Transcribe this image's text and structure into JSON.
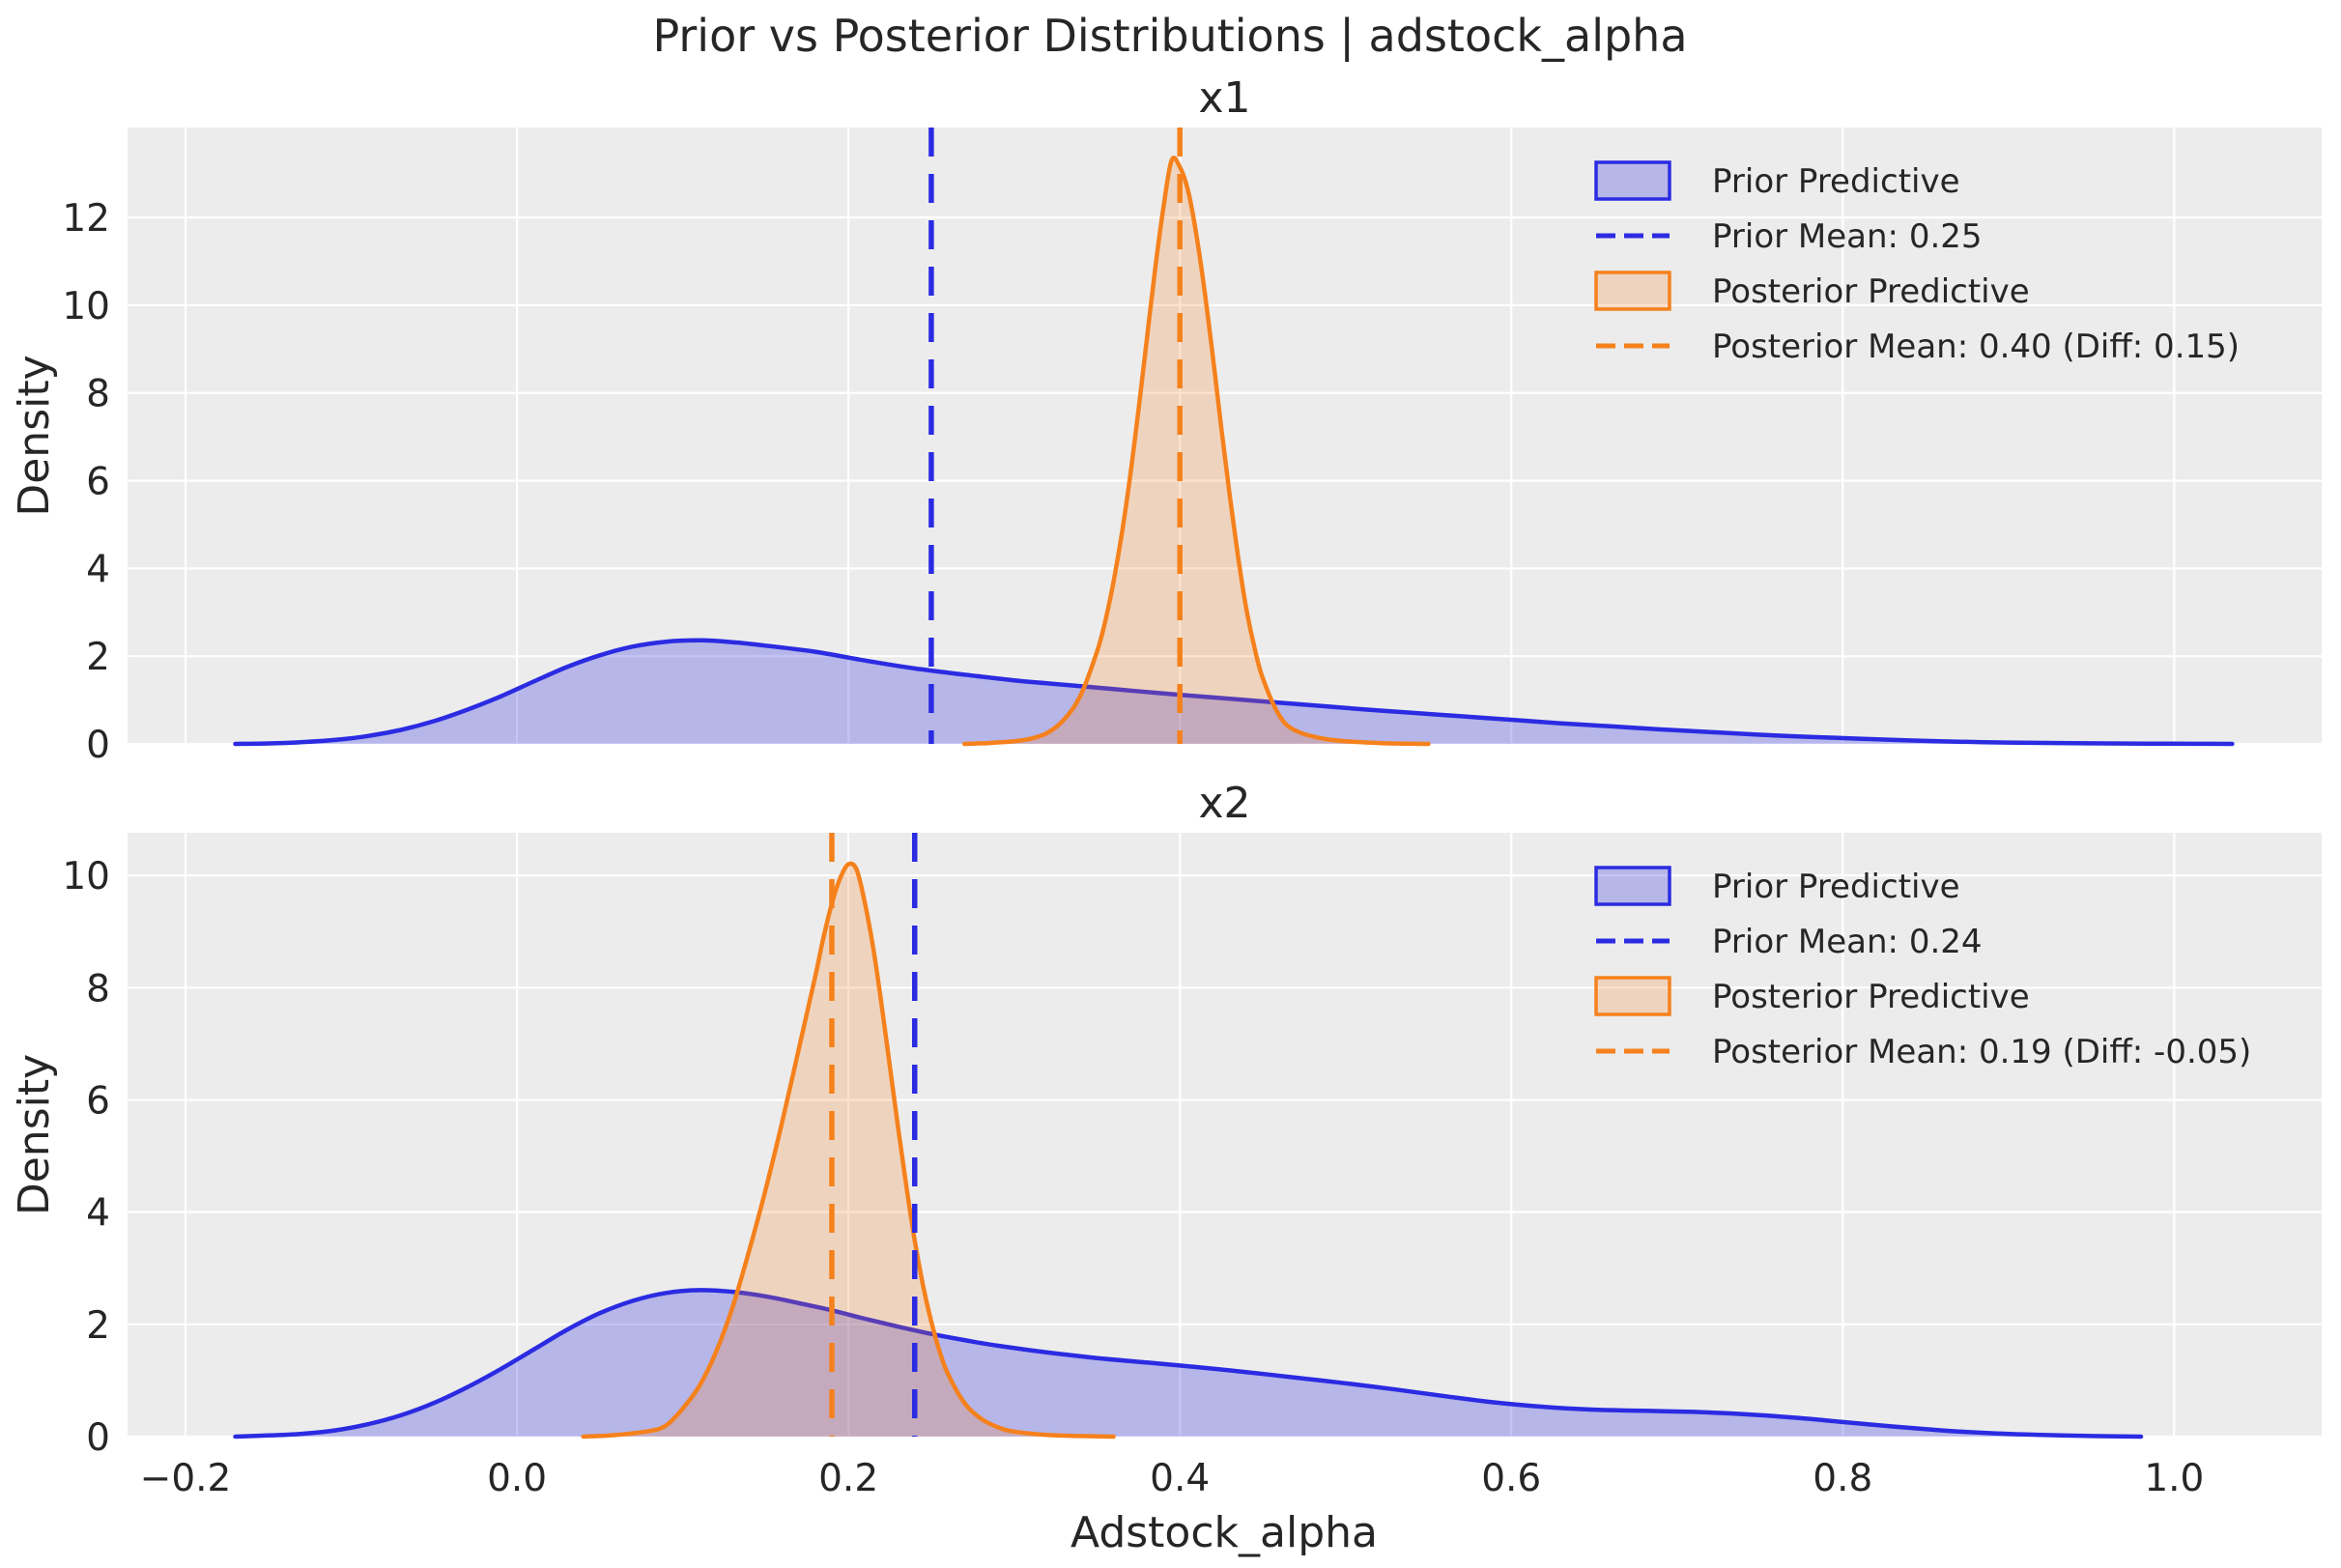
{
  "figure": {
    "title": "Prior vs Posterior Distributions | adstock_alpha",
    "xlabel": "Adstock_alpha",
    "background": "#ffffff",
    "axes_background": "#ececec",
    "grid_color": "#ffffff",
    "text_color": "#262626",
    "prior_color": "#2b2be2",
    "posterior_color": "#f5811d",
    "prior_fill": "rgba(43,43,226,0.28)",
    "posterior_fill": "rgba(245,129,29,0.22)"
  },
  "chart_data": [
    {
      "type": "area",
      "subplot_title": "x1",
      "ylabel": "Density",
      "xlim": [
        -0.235,
        1.089
      ],
      "ylim": [
        0,
        14.05
      ],
      "xtick_values": [
        -0.2,
        0.0,
        0.2,
        0.4,
        0.6,
        0.8,
        1.0
      ],
      "xtick_labels": [
        "−0.2",
        "0.0",
        "0.2",
        "0.4",
        "0.6",
        "0.8",
        "1.0"
      ],
      "show_xtick_labels": false,
      "ytick_values": [
        0,
        2,
        4,
        6,
        8,
        10,
        12
      ],
      "ytick_labels": [
        "0",
        "2",
        "4",
        "6",
        "8",
        "10",
        "12"
      ],
      "series": [
        {
          "name": "Prior Predictive",
          "role": "prior",
          "points": [
            [
              -0.17,
              0.0
            ],
            [
              -0.15,
              0.01
            ],
            [
              -0.13,
              0.04
            ],
            [
              -0.11,
              0.09
            ],
            [
              -0.09,
              0.18
            ],
            [
              -0.07,
              0.32
            ],
            [
              -0.05,
              0.52
            ],
            [
              -0.03,
              0.78
            ],
            [
              -0.01,
              1.08
            ],
            [
              0.01,
              1.42
            ],
            [
              0.03,
              1.75
            ],
            [
              0.05,
              2.02
            ],
            [
              0.07,
              2.22
            ],
            [
              0.09,
              2.33
            ],
            [
              0.11,
              2.36
            ],
            [
              0.13,
              2.32
            ],
            [
              0.15,
              2.24
            ],
            [
              0.18,
              2.1
            ],
            [
              0.21,
              1.9
            ],
            [
              0.24,
              1.72
            ],
            [
              0.27,
              1.58
            ],
            [
              0.3,
              1.45
            ],
            [
              0.33,
              1.35
            ],
            [
              0.36,
              1.25
            ],
            [
              0.39,
              1.15
            ],
            [
              0.42,
              1.06
            ],
            [
              0.45,
              0.97
            ],
            [
              0.48,
              0.88
            ],
            [
              0.51,
              0.79
            ],
            [
              0.54,
              0.71
            ],
            [
              0.57,
              0.63
            ],
            [
              0.6,
              0.55
            ],
            [
              0.63,
              0.47
            ],
            [
              0.66,
              0.4
            ],
            [
              0.69,
              0.33
            ],
            [
              0.72,
              0.27
            ],
            [
              0.75,
              0.21
            ],
            [
              0.78,
              0.16
            ],
            [
              0.81,
              0.12
            ],
            [
              0.84,
              0.08
            ],
            [
              0.87,
              0.05
            ],
            [
              0.9,
              0.03
            ],
            [
              0.93,
              0.02
            ],
            [
              0.96,
              0.01
            ],
            [
              1.0,
              0.005
            ],
            [
              1.035,
              0.0
            ]
          ]
        },
        {
          "name": "Posterior Predictive",
          "role": "posterior",
          "points": [
            [
              0.27,
              0.0
            ],
            [
              0.285,
              0.02
            ],
            [
              0.3,
              0.06
            ],
            [
              0.31,
              0.12
            ],
            [
              0.32,
              0.25
            ],
            [
              0.33,
              0.55
            ],
            [
              0.34,
              1.1
            ],
            [
              0.35,
              2.1
            ],
            [
              0.355,
              2.8
            ],
            [
              0.36,
              3.7
            ],
            [
              0.365,
              4.8
            ],
            [
              0.37,
              6.1
            ],
            [
              0.375,
              7.6
            ],
            [
              0.38,
              9.2
            ],
            [
              0.385,
              10.8
            ],
            [
              0.39,
              12.2
            ],
            [
              0.395,
              13.3
            ],
            [
              0.4,
              13.15
            ],
            [
              0.405,
              12.6
            ],
            [
              0.41,
              11.6
            ],
            [
              0.415,
              10.3
            ],
            [
              0.42,
              8.8
            ],
            [
              0.425,
              7.2
            ],
            [
              0.43,
              5.7
            ],
            [
              0.435,
              4.3
            ],
            [
              0.44,
              3.1
            ],
            [
              0.445,
              2.2
            ],
            [
              0.45,
              1.5
            ],
            [
              0.46,
              0.65
            ],
            [
              0.47,
              0.3
            ],
            [
              0.49,
              0.1
            ],
            [
              0.52,
              0.02
            ],
            [
              0.55,
              0.0
            ]
          ]
        }
      ],
      "mean_lines": [
        {
          "label": "Prior Mean: 0.25",
          "x": 0.25,
          "role": "prior"
        },
        {
          "label": "Posterior Mean: 0.40 (Diff: 0.15)",
          "x": 0.4,
          "role": "posterior"
        }
      ],
      "legend": [
        {
          "marker": "patch",
          "role": "prior",
          "label": "Prior Predictive"
        },
        {
          "marker": "dash",
          "role": "prior",
          "label": "Prior Mean: 0.25"
        },
        {
          "marker": "patch",
          "role": "posterior",
          "label": "Posterior Predictive"
        },
        {
          "marker": "dash",
          "role": "posterior",
          "label": "Posterior Mean: 0.40 (Diff: 0.15)"
        }
      ]
    },
    {
      "type": "area",
      "subplot_title": "x2",
      "ylabel": "Density",
      "xlim": [
        -0.235,
        1.089
      ],
      "ylim": [
        0,
        10.76
      ],
      "xtick_values": [
        -0.2,
        0.0,
        0.2,
        0.4,
        0.6,
        0.8,
        1.0
      ],
      "xtick_labels": [
        "−0.2",
        "0.0",
        "0.2",
        "0.4",
        "0.6",
        "0.8",
        "1.0"
      ],
      "show_xtick_labels": true,
      "ytick_values": [
        0,
        2,
        4,
        6,
        8,
        10
      ],
      "ytick_labels": [
        "0",
        "2",
        "4",
        "6",
        "8",
        "10"
      ],
      "series": [
        {
          "name": "Prior Predictive",
          "role": "prior",
          "points": [
            [
              -0.17,
              0.0
            ],
            [
              -0.15,
              0.02
            ],
            [
              -0.13,
              0.05
            ],
            [
              -0.11,
              0.11
            ],
            [
              -0.09,
              0.22
            ],
            [
              -0.07,
              0.38
            ],
            [
              -0.05,
              0.6
            ],
            [
              -0.03,
              0.88
            ],
            [
              -0.01,
              1.2
            ],
            [
              0.01,
              1.55
            ],
            [
              0.03,
              1.9
            ],
            [
              0.05,
              2.2
            ],
            [
              0.07,
              2.42
            ],
            [
              0.09,
              2.56
            ],
            [
              0.11,
              2.61
            ],
            [
              0.13,
              2.58
            ],
            [
              0.15,
              2.5
            ],
            [
              0.17,
              2.38
            ],
            [
              0.19,
              2.25
            ],
            [
              0.21,
              2.1
            ],
            [
              0.23,
              1.96
            ],
            [
              0.25,
              1.83
            ],
            [
              0.27,
              1.72
            ],
            [
              0.29,
              1.62
            ],
            [
              0.32,
              1.5
            ],
            [
              0.35,
              1.4
            ],
            [
              0.38,
              1.32
            ],
            [
              0.41,
              1.24
            ],
            [
              0.44,
              1.15
            ],
            [
              0.47,
              1.05
            ],
            [
              0.5,
              0.95
            ],
            [
              0.53,
              0.84
            ],
            [
              0.56,
              0.72
            ],
            [
              0.59,
              0.61
            ],
            [
              0.62,
              0.53
            ],
            [
              0.65,
              0.48
            ],
            [
              0.68,
              0.46
            ],
            [
              0.71,
              0.44
            ],
            [
              0.74,
              0.4
            ],
            [
              0.77,
              0.34
            ],
            [
              0.8,
              0.26
            ],
            [
              0.83,
              0.18
            ],
            [
              0.86,
              0.11
            ],
            [
              0.89,
              0.06
            ],
            [
              0.92,
              0.03
            ],
            [
              0.95,
              0.01
            ],
            [
              0.98,
              0.0
            ]
          ]
        },
        {
          "name": "Posterior Predictive",
          "role": "posterior",
          "points": [
            [
              0.04,
              0.0
            ],
            [
              0.06,
              0.03
            ],
            [
              0.08,
              0.1
            ],
            [
              0.09,
              0.2
            ],
            [
              0.1,
              0.5
            ],
            [
              0.11,
              0.9
            ],
            [
              0.12,
              1.5
            ],
            [
              0.13,
              2.3
            ],
            [
              0.14,
              3.3
            ],
            [
              0.15,
              4.4
            ],
            [
              0.16,
              5.6
            ],
            [
              0.17,
              6.9
            ],
            [
              0.18,
              8.2
            ],
            [
              0.185,
              8.9
            ],
            [
              0.19,
              9.5
            ],
            [
              0.195,
              9.95
            ],
            [
              0.2,
              10.2
            ],
            [
              0.205,
              10.1
            ],
            [
              0.21,
              9.5
            ],
            [
              0.215,
              8.7
            ],
            [
              0.22,
              7.7
            ],
            [
              0.225,
              6.6
            ],
            [
              0.23,
              5.5
            ],
            [
              0.235,
              4.45
            ],
            [
              0.24,
              3.5
            ],
            [
              0.245,
              2.7
            ],
            [
              0.25,
              2.05
            ],
            [
              0.255,
              1.52
            ],
            [
              0.26,
              1.12
            ],
            [
              0.27,
              0.6
            ],
            [
              0.28,
              0.32
            ],
            [
              0.29,
              0.17
            ],
            [
              0.3,
              0.09
            ],
            [
              0.32,
              0.03
            ],
            [
              0.34,
              0.01
            ],
            [
              0.36,
              0.0
            ]
          ]
        }
      ],
      "mean_lines": [
        {
          "label": "Prior Mean: 0.24",
          "x": 0.24,
          "role": "prior"
        },
        {
          "label": "Posterior Mean: 0.19 (Diff: -0.05)",
          "x": 0.19,
          "role": "posterior"
        }
      ],
      "legend": [
        {
          "marker": "patch",
          "role": "prior",
          "label": "Prior Predictive"
        },
        {
          "marker": "dash",
          "role": "prior",
          "label": "Prior Mean: 0.24"
        },
        {
          "marker": "patch",
          "role": "posterior",
          "label": "Posterior Predictive"
        },
        {
          "marker": "dash",
          "role": "posterior",
          "label": "Posterior Mean: 0.19 (Diff: -0.05)"
        }
      ]
    }
  ]
}
